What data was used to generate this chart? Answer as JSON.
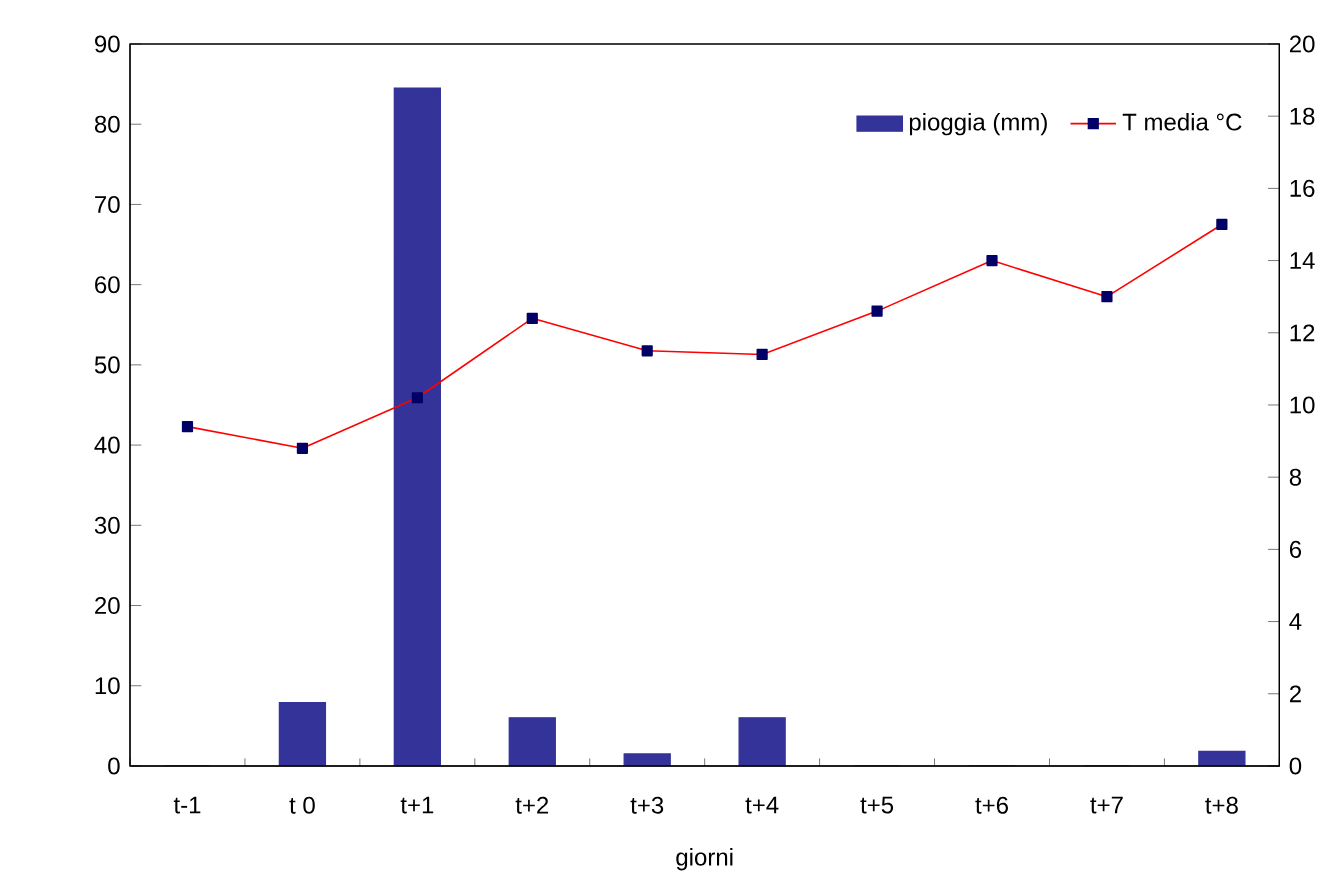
{
  "chart_data": {
    "type": "bar",
    "xlabel": "giorni",
    "categories": [
      "t-1",
      "t 0",
      "t+1",
      "t+2",
      "t+3",
      "t+4",
      "t+5",
      "t+6",
      "t+7",
      "t+8"
    ],
    "series": [
      {
        "name": "pioggia (mm)",
        "color": "#333399",
        "values": [
          0,
          7.9,
          84.5,
          6,
          1.5,
          6,
          0,
          0,
          0,
          1.8
        ]
      },
      {
        "name": "T media °C",
        "type": "line",
        "axis": "y2",
        "color": "#ff0000",
        "values": [
          9.4,
          8.8,
          10.2,
          12.4,
          11.5,
          11.4,
          12.6,
          14.0,
          13.0,
          15.0
        ]
      }
    ],
    "ylim": [
      0,
      90
    ],
    "yticks": [
      0,
      10,
      20,
      30,
      40,
      50,
      60,
      70,
      80,
      90
    ],
    "y2lim": [
      0,
      20
    ],
    "y2ticks": [
      0,
      2,
      4,
      6,
      8,
      10,
      12,
      14,
      16,
      18,
      20
    ],
    "legend": "top right",
    "marker": "square",
    "grid": false
  }
}
